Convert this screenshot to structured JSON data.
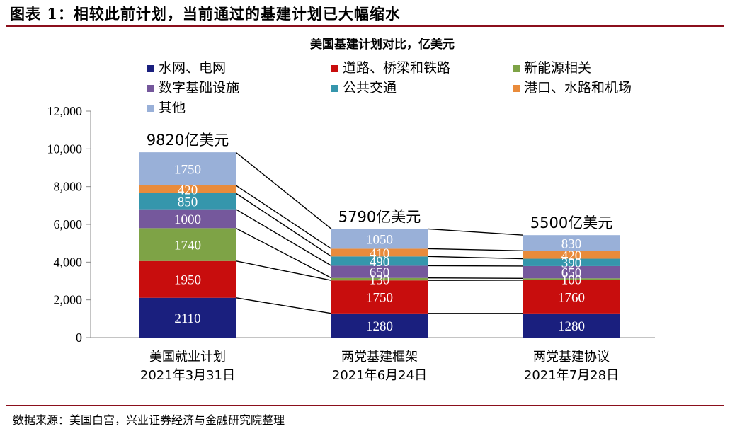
{
  "figure": {
    "title": "图表 1：相较此前计划，当前通过的基建计划已大幅缩水",
    "source": "数据来源：美国白宫，兴业证券经济与金融研究院整理"
  },
  "chart_data": {
    "type": "bar",
    "stacked": true,
    "title": "美国基建计划对比，亿美元",
    "categories": [
      [
        "美国就业计划",
        "2021年3月31日"
      ],
      [
        "两党基建框架",
        "2021年6月24日"
      ],
      [
        "两党基建协议",
        "2021年7月28日"
      ]
    ],
    "series": [
      {
        "name": "水网、电网",
        "color": "#1a1f7e",
        "values": [
          2110,
          1280,
          1280
        ]
      },
      {
        "name": "道路、桥梁和铁路",
        "color": "#c80d0d",
        "values": [
          1950,
          1750,
          1760
        ]
      },
      {
        "name": "新能源相关",
        "color": "#7ea346",
        "values": [
          1740,
          130,
          100
        ]
      },
      {
        "name": "数字基础设施",
        "color": "#75589c",
        "values": [
          1000,
          650,
          650
        ]
      },
      {
        "name": "公共交通",
        "color": "#3596ac",
        "values": [
          850,
          490,
          390
        ]
      },
      {
        "name": "港口、水路和机场",
        "color": "#e98b3b",
        "values": [
          420,
          410,
          420
        ]
      },
      {
        "name": "其他",
        "color": "#99b0d8",
        "values": [
          1750,
          1050,
          830
        ]
      }
    ],
    "totals": [
      "9820亿美元",
      "5790亿美元",
      "5500亿美元"
    ],
    "ylim": [
      0,
      12000
    ],
    "yticks": [
      "0",
      "2,000",
      "4,000",
      "6,000",
      "8,000",
      "10,000",
      "12,000"
    ],
    "xlabel": "",
    "ylabel": "",
    "grid": false,
    "legend_position": "top"
  }
}
